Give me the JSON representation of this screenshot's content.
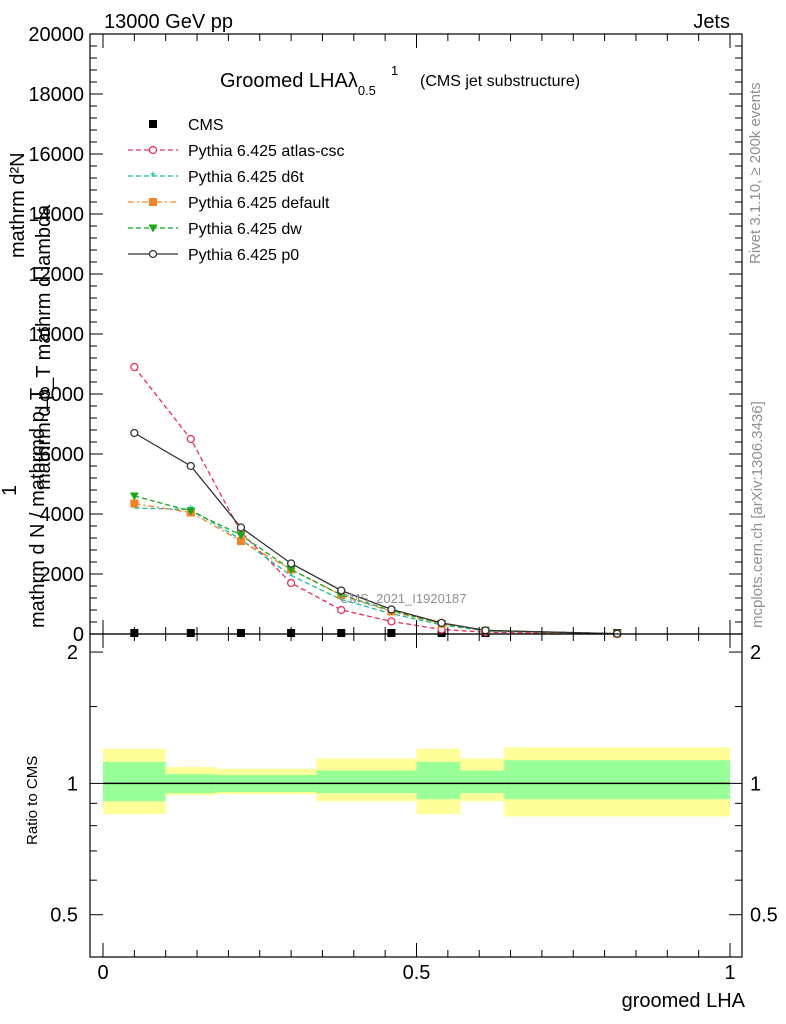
{
  "header": {
    "left": "13000 GeV pp",
    "right": "Jets"
  },
  "side_labels": {
    "rivet": "Rivet 3.1.10, ≥ 200k events",
    "mcplots": "mcplots.cern.ch [arXiv:1306.3436]"
  },
  "chart_data": [
    {
      "type": "line",
      "title": "Groomed LHA",
      "title_symbol": "λ",
      "title_sup": "1",
      "title_sub": "0.5",
      "subtitle": "(CMS jet substructure)",
      "watermark": "CMS_2021_I1920187",
      "ylabel_lines": [
        "mathrm d²N",
        "mathrm d p_T mathrm d lambda",
        "1",
        "mathrm d N / mathrmd p_T"
      ],
      "ylim": [
        0,
        20000
      ],
      "y_ticks": [
        0,
        2000,
        4000,
        6000,
        8000,
        10000,
        12000,
        14000,
        16000,
        18000,
        20000
      ],
      "y_tick_labels": [
        "0",
        "2000",
        "4000",
        "6000",
        "8000",
        "10000",
        "12000",
        "14000",
        "16000",
        "18000",
        "20000"
      ],
      "xlim": [
        0,
        1
      ],
      "legend_placement": "top-left",
      "legend_entries": [
        "CMS",
        "Pythia 6.425 atlas-csc",
        "Pythia 6.425 d6t",
        "Pythia 6.425 default",
        "Pythia 6.425 dw",
        "Pythia 6.425 p0"
      ],
      "series": [
        {
          "name": "CMS",
          "color": "#000000",
          "marker": "square-filled",
          "x": [
            0.05,
            0.14,
            0.22,
            0.3,
            0.38,
            0.46,
            0.54,
            0.61,
            0.82
          ],
          "values": [
            0,
            0,
            0,
            0,
            0,
            0,
            0,
            0,
            0
          ]
        },
        {
          "name": "Pythia 6.425 atlas-csc",
          "color": "#e8305a",
          "marker": "circle-open",
          "dash": "5,3",
          "x": [
            0.05,
            0.14,
            0.22,
            0.3,
            0.38,
            0.46,
            0.54,
            0.61,
            0.82
          ],
          "values": [
            8900,
            6500,
            3400,
            1700,
            800,
            420,
            150,
            60,
            5
          ]
        },
        {
          "name": "Pythia 6.425 d6t",
          "color": "#1abc9c",
          "marker": "star",
          "dash": "5,3",
          "x": [
            0.05,
            0.14,
            0.22,
            0.3,
            0.38,
            0.46,
            0.54,
            0.61,
            0.82
          ],
          "values": [
            4200,
            4150,
            3150,
            1950,
            1150,
            680,
            300,
            100,
            10
          ]
        },
        {
          "name": "Pythia 6.425 default",
          "color": "#f58426",
          "marker": "square-filled",
          "dash": "6,3,2,3",
          "x": [
            0.05,
            0.14,
            0.22,
            0.3,
            0.38,
            0.46,
            0.54,
            0.61,
            0.82
          ],
          "values": [
            4350,
            4050,
            3100,
            2150,
            1300,
            750,
            340,
            110,
            10
          ]
        },
        {
          "name": "Pythia 6.425 dw",
          "color": "#18a818",
          "marker": "triangle-down",
          "dash": "5,3",
          "x": [
            0.05,
            0.14,
            0.22,
            0.3,
            0.38,
            0.46,
            0.54,
            0.61,
            0.82
          ],
          "values": [
            4600,
            4100,
            3300,
            2150,
            1300,
            780,
            350,
            120,
            10
          ]
        },
        {
          "name": "Pythia 6.425 p0",
          "color": "#333333",
          "marker": "circle-open",
          "dash": "",
          "x": [
            0.05,
            0.14,
            0.22,
            0.3,
            0.38,
            0.46,
            0.54,
            0.61,
            0.82
          ],
          "values": [
            6700,
            5600,
            3550,
            2350,
            1450,
            820,
            370,
            120,
            10
          ]
        }
      ]
    },
    {
      "type": "area",
      "ylabel": "Ratio to CMS",
      "xlabel": "groomed LHA",
      "ylim": [
        0.4,
        2.2
      ],
      "log_y": true,
      "y_ticks": [
        0.5,
        1,
        2
      ],
      "y_tick_labels": [
        "0.5",
        "1",
        "2"
      ],
      "xlim": [
        0,
        1
      ],
      "x_ticks": [
        0,
        0.5,
        1
      ],
      "x_tick_labels": [
        "0",
        "0.5",
        "1"
      ],
      "band_colors": {
        "inner": "#99ff99",
        "outer": "#ffff99"
      },
      "bands": [
        {
          "x0": 0.0,
          "x1": 0.1,
          "outer": [
            0.85,
            1.2
          ],
          "inner": [
            0.91,
            1.12
          ]
        },
        {
          "x0": 0.1,
          "x1": 0.18,
          "outer": [
            0.94,
            1.09
          ],
          "inner": [
            0.95,
            1.05
          ]
        },
        {
          "x0": 0.18,
          "x1": 0.34,
          "outer": [
            0.945,
            1.08
          ],
          "inner": [
            0.955,
            1.045
          ]
        },
        {
          "x0": 0.34,
          "x1": 0.5,
          "outer": [
            0.91,
            1.14
          ],
          "inner": [
            0.95,
            1.07
          ]
        },
        {
          "x0": 0.5,
          "x1": 0.57,
          "outer": [
            0.85,
            1.2
          ],
          "inner": [
            0.92,
            1.12
          ]
        },
        {
          "x0": 0.57,
          "x1": 0.64,
          "outer": [
            0.91,
            1.14
          ],
          "inner": [
            0.95,
            1.07
          ]
        },
        {
          "x0": 0.64,
          "x1": 1.0,
          "outer": [
            0.84,
            1.21
          ],
          "inner": [
            0.92,
            1.13
          ]
        }
      ],
      "reference": 1
    }
  ]
}
